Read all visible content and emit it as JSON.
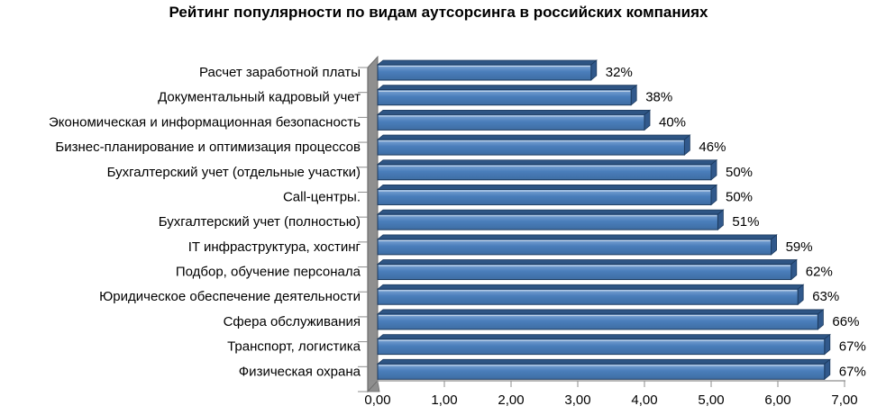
{
  "page": {
    "background": "#FFFFFF"
  },
  "chart_data": {
    "type": "bar",
    "orientation": "horizontal",
    "style": "3d",
    "title": "Рейтинг популярности по видам аутсорсинга в российских компаниях",
    "categories": [
      "Расчет заработной платы",
      "Документальный кадровый учет",
      "Экономическая и информационная безопасность",
      "Бизнес-планирование и оптимизация процессов",
      "Бухгалтерский учет (отдельные участки)",
      "Call-центры.",
      "Бухгалтерский учет (полностью)",
      "IT инфраструктура, хостинг",
      "Подбор, обучение персонала",
      "Юридическое обеспечение деятельности",
      "Сфера обслуживания",
      "Транспорт, логистика",
      "Физическая охрана"
    ],
    "values_percent": [
      32,
      38,
      40,
      46,
      50,
      50,
      51,
      59,
      62,
      63,
      66,
      67,
      67
    ],
    "value_labels": [
      "32%",
      "38%",
      "40%",
      "46%",
      "50%",
      "50%",
      "51%",
      "59%",
      "62%",
      "63%",
      "66%",
      "67%",
      "67%"
    ],
    "axis_lengths": [
      3.2,
      3.8,
      4.0,
      4.6,
      5.0,
      5.0,
      5.1,
      5.9,
      6.2,
      6.3,
      6.6,
      6.7,
      6.7
    ],
    "xlim": [
      0,
      7
    ],
    "x_tick_labels": [
      "0,00",
      "1,00",
      "2,00",
      "3,00",
      "4,00",
      "5,00",
      "6,00",
      "7,00"
    ],
    "grid": false,
    "legend": false,
    "colors": {
      "bar_fill": "#4A7EBB",
      "bar_fill_light": "#7FA7D6",
      "bar_fill_dark": "#3E6DA3",
      "bar_outline": "#1C3A5E",
      "bar_cap": "#31598C",
      "bar_top_face": "#2E5584",
      "bar_highlight": "#C9D9EC",
      "wall": "#8F8F8F",
      "wall_edge": "#6B6B6B",
      "axis_line": "#8C8C8C",
      "text": "#000000",
      "background": "#FFFFFF"
    }
  }
}
